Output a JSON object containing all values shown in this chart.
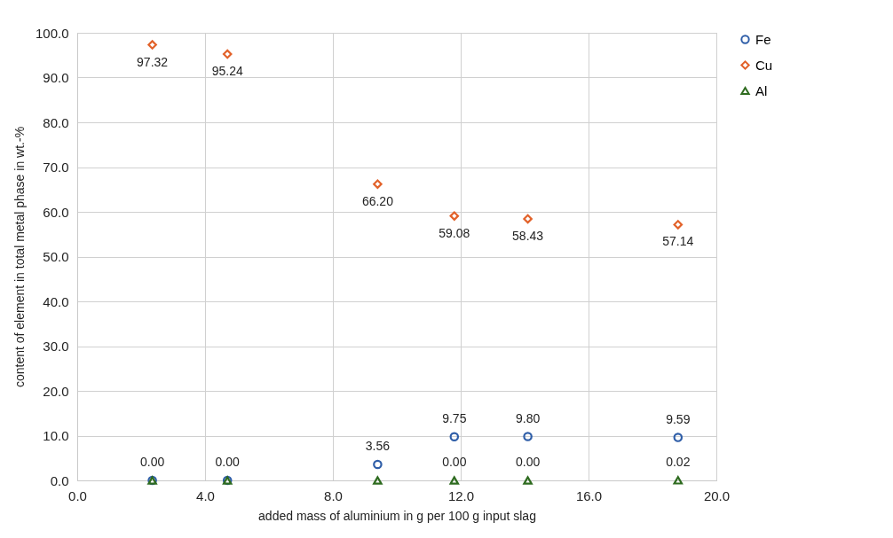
{
  "chart_data": {
    "type": "scatter",
    "xlabel": "added mass of aluminium in g per 100 g input slag",
    "ylabel": "content of element in total metal phase in wt.-%",
    "x": [
      2.35,
      4.7,
      9.4,
      11.8,
      14.1,
      18.8
    ],
    "series": [
      {
        "name": "Fe",
        "color": "#2f5ea8",
        "marker": "circle",
        "values": [
          0,
          0,
          3.56,
          9.75,
          9.8,
          9.59
        ],
        "value_labels": [
          "0.00",
          "0.00",
          "3.56",
          "9.75",
          "9.80",
          "9.59"
        ]
      },
      {
        "name": "Cu",
        "color": "#e2622a",
        "marker": "diamond",
        "values": [
          97.32,
          95.24,
          66.2,
          59.08,
          58.43,
          57.14
        ],
        "value_labels": [
          "97.32",
          "95.24",
          "66.20",
          "59.08",
          "58.43",
          "57.14"
        ]
      },
      {
        "name": "Al",
        "color": "#2e6b1f",
        "marker": "triangle",
        "values": [
          0,
          0,
          0,
          0,
          0,
          0.02
        ],
        "value_labels": [
          null,
          null,
          null,
          "0.00",
          "0.00",
          "0.02"
        ]
      }
    ],
    "xlim": [
      0,
      20
    ],
    "xticks": [
      {
        "value": 0,
        "label": "0.0"
      },
      {
        "value": 4,
        "label": "4.0"
      },
      {
        "value": 8,
        "label": "8.0"
      },
      {
        "value": 12,
        "label": "12.0"
      },
      {
        "value": 16,
        "label": "16.0"
      },
      {
        "value": 20,
        "label": "20.0"
      }
    ],
    "ylim": [
      0,
      100
    ],
    "yticks": [
      {
        "value": 0,
        "label": "0.0"
      },
      {
        "value": 10,
        "label": "10.0"
      },
      {
        "value": 20,
        "label": "20.0"
      },
      {
        "value": 30,
        "label": "30.0"
      },
      {
        "value": 40,
        "label": "40.0"
      },
      {
        "value": 50,
        "label": "50.0"
      },
      {
        "value": 60,
        "label": "60.0"
      },
      {
        "value": 70,
        "label": "70.0"
      },
      {
        "value": 80,
        "label": "80.0"
      },
      {
        "value": 90,
        "label": "90.0"
      },
      {
        "value": 100,
        "label": "100.0"
      }
    ],
    "grid": true,
    "legend": "right"
  }
}
